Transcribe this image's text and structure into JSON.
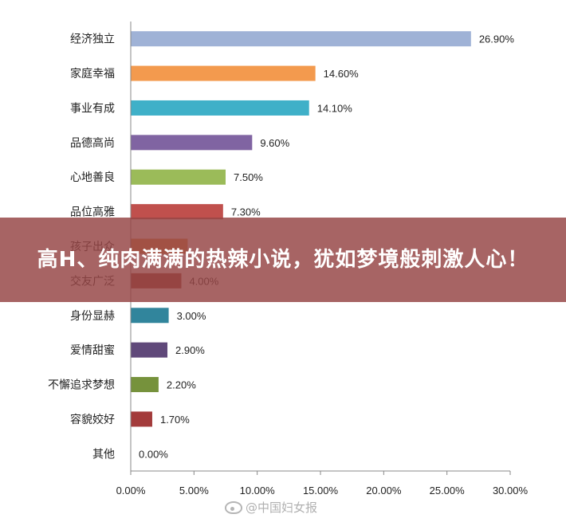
{
  "banner": {
    "headline": "高H、纯肉满满的热辣小说，犹如梦境般刺激人心！"
  },
  "watermark": {
    "text": "@中国妇女报"
  },
  "chart_data": {
    "type": "bar",
    "orientation": "horizontal",
    "title": "",
    "xlabel": "",
    "ylabel": "",
    "xlim": [
      0,
      30
    ],
    "x_ticks": [
      "0.00%",
      "5.00%",
      "10.00%",
      "15.00%",
      "20.00%",
      "25.00%",
      "30.00%"
    ],
    "grid": false,
    "categories": [
      "经济独立",
      "家庭幸福",
      "事业有成",
      "品德高尚",
      "心地善良",
      "品位高雅",
      "孩子出众",
      "交友广泛",
      "身份显赫",
      "爱情甜蜜",
      "不懈追求梦想",
      "容貌姣好",
      "其他"
    ],
    "values": [
      26.9,
      14.6,
      14.1,
      9.6,
      7.5,
      7.3,
      4.5,
      4.0,
      3.0,
      2.9,
      2.2,
      1.7,
      0.0
    ],
    "value_labels": [
      "26.90%",
      "14.60%",
      "14.10%",
      "9.60%",
      "7.50%",
      "7.30%",
      "",
      "4.00%",
      "3.00%",
      "2.90%",
      "2.20%",
      "1.70%",
      "0.00%"
    ],
    "colors": [
      "#9fb2d6",
      "#f39a4e",
      "#3fb0c8",
      "#8064a2",
      "#9bbb59",
      "#c0504d",
      "#e08a3c",
      "#963b2e",
      "#31859c",
      "#60497a",
      "#76923c",
      "#a33b3b",
      "#666666"
    ]
  }
}
